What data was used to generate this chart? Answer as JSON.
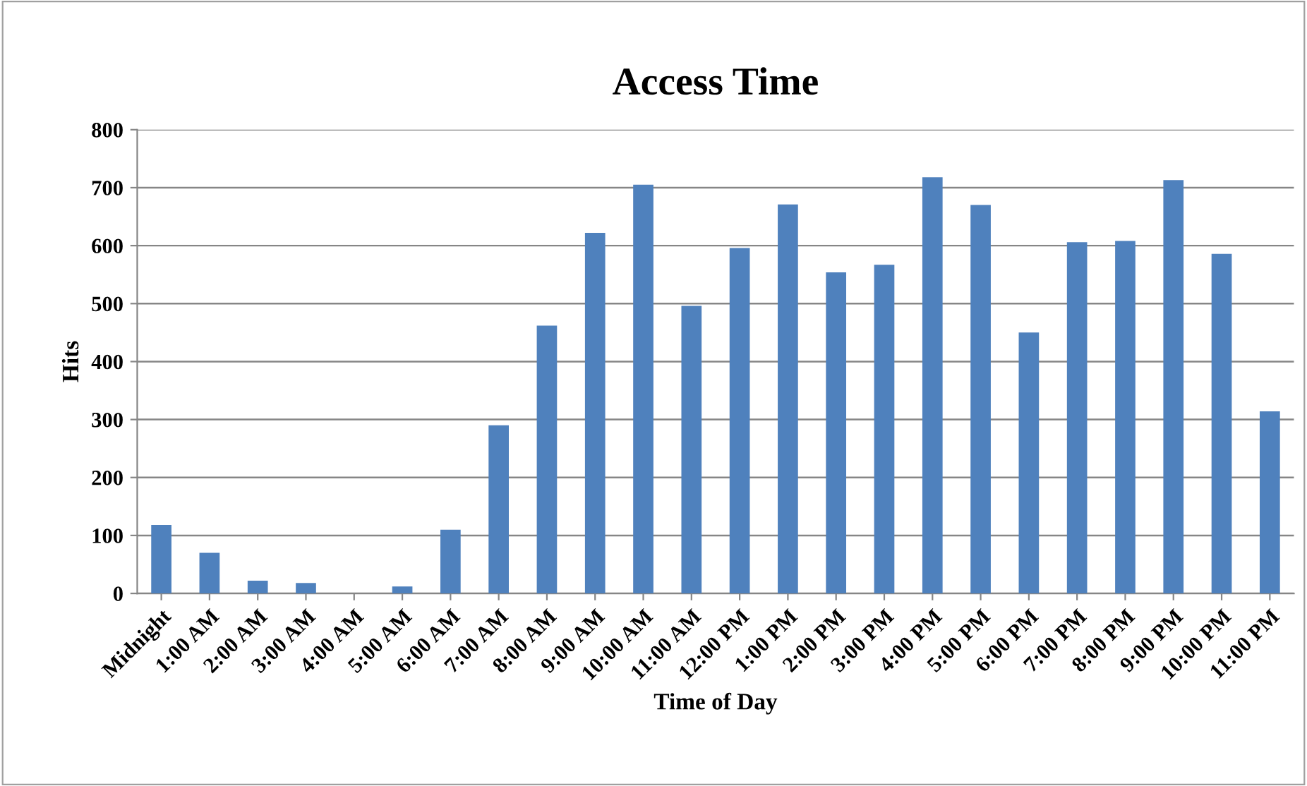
{
  "chart_data": {
    "type": "bar",
    "title": "Access Time",
    "xlabel": "Time of Day",
    "ylabel": "Hits",
    "categories": [
      "Midnight",
      "1:00 AM",
      "2:00 AM",
      "3:00 AM",
      "4:00 AM",
      "5:00 AM",
      "6:00 AM",
      "7:00 AM",
      "8:00 AM",
      "9:00 AM",
      "10:00 AM",
      "11:00 AM",
      "12:00 PM",
      "1:00 PM",
      "2:00 PM",
      "3:00 PM",
      "4:00 PM",
      "5:00 PM",
      "6:00 PM",
      "7:00 PM",
      "8:00 PM",
      "9:00 PM",
      "10:00 PM",
      "11:00 PM"
    ],
    "values": [
      118,
      70,
      22,
      18,
      0,
      12,
      110,
      290,
      462,
      622,
      705,
      496,
      596,
      671,
      554,
      567,
      718,
      670,
      450,
      606,
      608,
      713,
      586,
      314
    ],
    "color": "#4f81bd",
    "ylim": [
      0,
      800
    ],
    "yticks": [
      0,
      100,
      200,
      300,
      400,
      500,
      600,
      700,
      800
    ],
    "grid": "y",
    "legend": false
  }
}
